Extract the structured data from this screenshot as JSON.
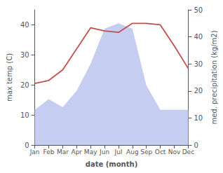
{
  "chart_data": {
    "type": "line",
    "categories": [
      "Jan",
      "Feb",
      "Mar",
      "Apr",
      "May",
      "Jun",
      "Jul",
      "Aug",
      "Sep",
      "Oct",
      "Nov",
      "Dec"
    ],
    "xlabel": "date (month)",
    "ylabel": "max temp (C)",
    "y2label": "med. precipitation (kg/m2)",
    "ylim": [
      0,
      45
    ],
    "yticks": [
      0,
      10,
      20,
      30,
      40
    ],
    "y2lim": [
      0,
      50
    ],
    "y2ticks": [
      0,
      10,
      20,
      30,
      40,
      50
    ],
    "grid": false,
    "series": [
      {
        "type": "area",
        "axis": "y2",
        "color": "#c5cdf0",
        "values": [
          13,
          17,
          14,
          20,
          30,
          43,
          45,
          43,
          22,
          13,
          13,
          13
        ]
      },
      {
        "type": "line",
        "color": "#c0504d",
        "values": [
          20.5,
          21.5,
          25.0,
          32.0,
          39.0,
          38.0,
          37.5,
          40.5,
          40.5,
          40.0,
          33.0,
          25.5
        ]
      }
    ]
  }
}
